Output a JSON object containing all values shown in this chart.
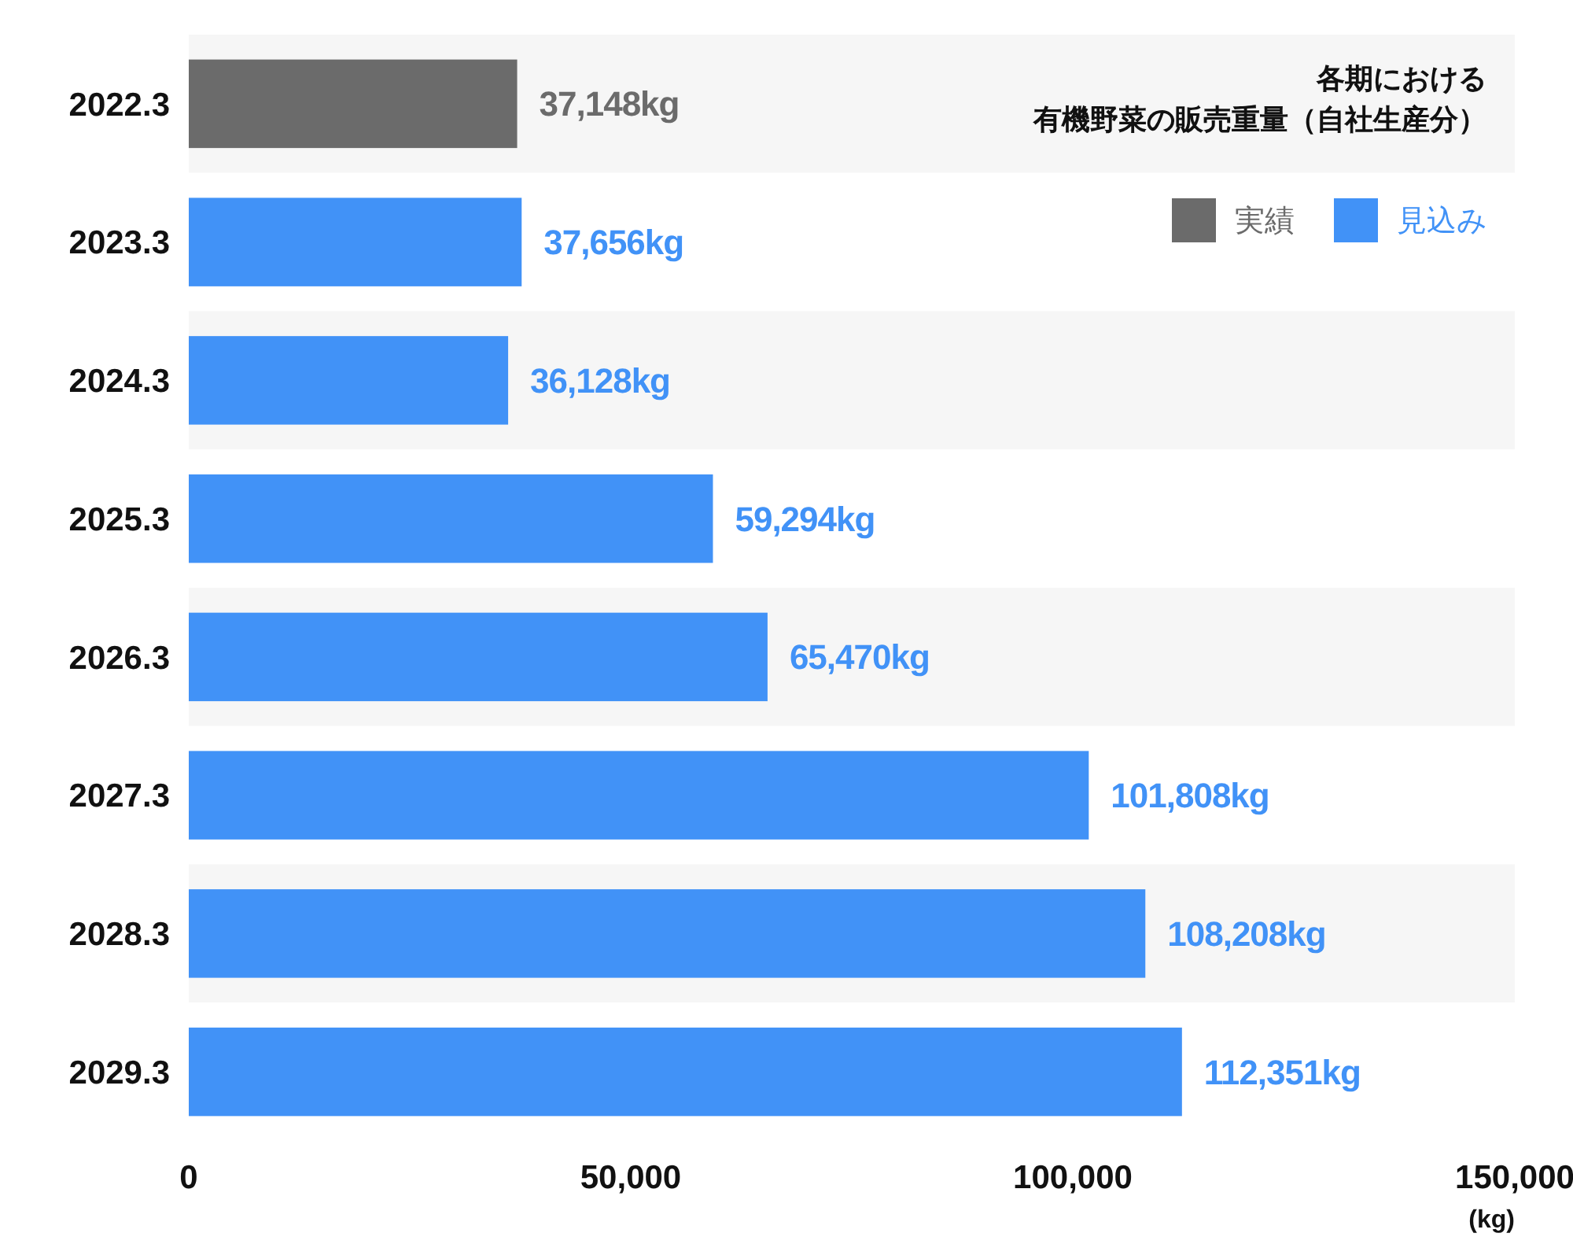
{
  "chart_data": {
    "type": "bar",
    "orientation": "horizontal",
    "title": "各期における",
    "subtitle": "有機野菜の販売重量（自社生産分）",
    "xlabel": "(kg)",
    "categories": [
      "2022.3",
      "2023.3",
      "2024.3",
      "2025.3",
      "2026.3",
      "2027.3",
      "2028.3",
      "2029.3"
    ],
    "series": [
      {
        "name": "実績",
        "color": "#6b6b6b",
        "values": [
          37148,
          null,
          null,
          null,
          null,
          null,
          null,
          null
        ],
        "value_labels": [
          "37,148kg",
          null,
          null,
          null,
          null,
          null,
          null,
          null
        ]
      },
      {
        "name": "見込み",
        "color": "#4192f7",
        "values": [
          null,
          37656,
          36128,
          59294,
          65470,
          101808,
          108208,
          112351
        ],
        "value_labels": [
          null,
          "37,656kg",
          "36,128kg",
          "59,294kg",
          "65,470kg",
          "101,808kg",
          "108,208kg",
          "112,351kg"
        ]
      }
    ],
    "xlim": [
      0,
      150000
    ],
    "xticks": [
      0,
      {
        "value": 50000,
        "label": "50,000"
      },
      {
        "value": 100000,
        "label": "100,000"
      },
      {
        "value": 150000,
        "label": "150,000"
      }
    ],
    "legend": "top right"
  }
}
